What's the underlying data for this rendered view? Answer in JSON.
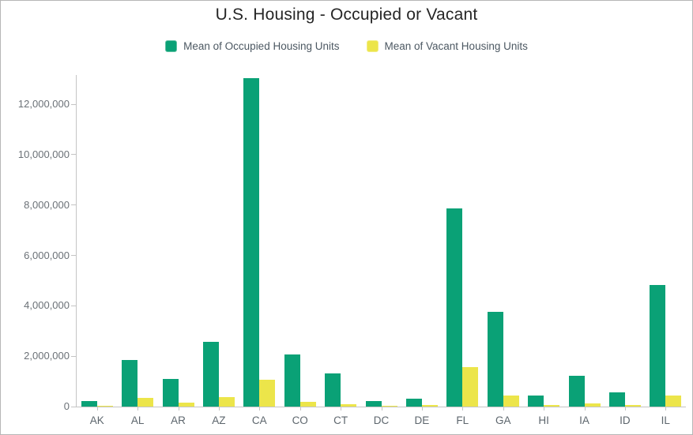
{
  "header": {
    "title": "U.S. Housing - Occupied or Vacant"
  },
  "legend": {
    "items": [
      {
        "label": "Mean of Occupied Housing Units",
        "color": "#0aa176",
        "border_color": "#5fc1a2"
      },
      {
        "label": "Mean of Vacant Housing Units",
        "color": "#ece54a",
        "border_color": "#f2ed85"
      }
    ]
  },
  "chart_data": {
    "type": "bar",
    "title": "U.S. Housing - Occupied or Vacant",
    "categories": [
      "AK",
      "AL",
      "AR",
      "AZ",
      "CA",
      "CO",
      "CT",
      "DC",
      "DE",
      "FL",
      "GA",
      "HI",
      "IA",
      "ID",
      "IL"
    ],
    "series": [
      {
        "name": "Mean of Occupied Housing Units",
        "color": "#0aa176",
        "values": [
          220000,
          1840000,
          1110000,
          2580000,
          13030000,
          2080000,
          1330000,
          215000,
          315000,
          7870000,
          3770000,
          440000,
          1210000,
          580000,
          4840000
        ]
      },
      {
        "name": "Mean of Vacant Housing Units",
        "color": "#ece54a",
        "values": [
          42000,
          345000,
          160000,
          375000,
          1055000,
          175000,
          82000,
          30000,
          62000,
          1560000,
          440000,
          62000,
          120000,
          62000,
          455000
        ]
      }
    ],
    "xlabel": "",
    "ylabel": "",
    "ylim": [
      0,
      13200000
    ],
    "ytick_step": 2000000,
    "ytick_labels": [
      "0",
      "2,000,000",
      "4,000,000",
      "6,000,000",
      "8,000,000",
      "10,000,000",
      "12,000,000"
    ],
    "grid": false,
    "legend_position": "top"
  }
}
